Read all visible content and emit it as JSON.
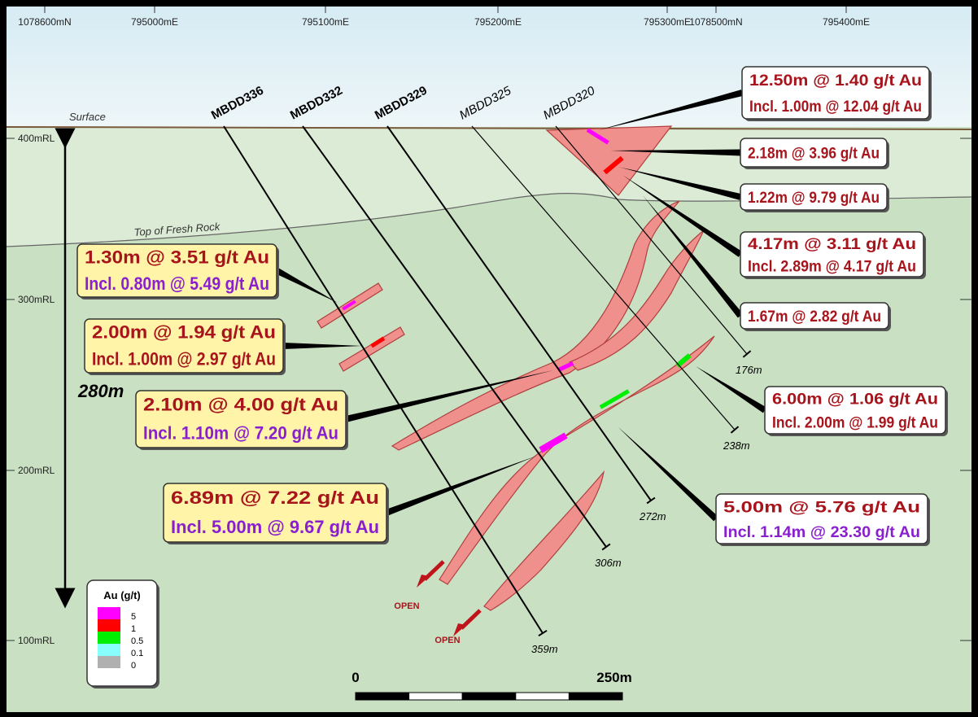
{
  "axis_top": [
    "1078600mN",
    "795000mE",
    "795100mE",
    "795200mE",
    "795300mE",
    "1078500mN",
    "795400mE"
  ],
  "rl_labels": [
    "400mRL",
    "300mRL",
    "200mRL",
    "100mRL"
  ],
  "surface": "Surface",
  "fresh_rock": "Top of Fresh Rock",
  "drillholes": [
    {
      "name": "MBDD336",
      "depth": "359m"
    },
    {
      "name": "MBDD332",
      "depth": "306m"
    },
    {
      "name": "MBDD329",
      "depth": "272m"
    },
    {
      "name": "MBDD325",
      "depth": "238m"
    },
    {
      "name": "MBDD320",
      "depth": "176m"
    }
  ],
  "vertical_extent": "280m",
  "callouts": [
    {
      "style": "white",
      "lines": [
        {
          "text": "12.50m @ 1.40 g/t Au",
          "color": "#a8141c"
        },
        {
          "text": "Incl. 1.00m @ 12.04 g/t Au",
          "color": "#a8141c"
        }
      ]
    },
    {
      "style": "white",
      "lines": [
        {
          "text": "2.18m @ 3.96 g/t Au",
          "color": "#a8141c"
        }
      ]
    },
    {
      "style": "white",
      "lines": [
        {
          "text": "1.22m @ 9.79 g/t Au",
          "color": "#a8141c"
        }
      ]
    },
    {
      "style": "white",
      "lines": [
        {
          "text": "4.17m @ 3.11 g/t Au",
          "color": "#a8141c"
        },
        {
          "text": "Incl. 2.89m @ 4.17 g/t Au",
          "color": "#a8141c"
        }
      ]
    },
    {
      "style": "white",
      "lines": [
        {
          "text": "1.67m @ 2.82 g/t Au",
          "color": "#a8141c"
        }
      ]
    },
    {
      "style": "white",
      "lines": [
        {
          "text": "6.00m @ 1.06 g/t Au",
          "color": "#a8141c"
        },
        {
          "text": "Incl. 2.00m @ 1.99 g/t Au",
          "color": "#a8141c"
        }
      ]
    },
    {
      "style": "white",
      "lines": [
        {
          "text": "5.00m @ 5.76 g/t Au",
          "color": "#a8141c"
        },
        {
          "text": "Incl. 1.14m @ 23.30 g/t Au",
          "color": "#8a1fd0"
        }
      ]
    },
    {
      "style": "yellow",
      "lines": [
        {
          "text": "1.30m @ 3.51 g/t Au",
          "color": "#a8141c"
        },
        {
          "text": "Incl. 0.80m @ 5.49 g/t Au",
          "color": "#8a1fd0"
        }
      ]
    },
    {
      "style": "yellow",
      "lines": [
        {
          "text": "2.00m @ 1.94 g/t Au",
          "color": "#a8141c"
        },
        {
          "text": "Incl. 1.00m @ 2.97 g/t Au",
          "color": "#a8141c"
        }
      ]
    },
    {
      "style": "yellow",
      "lines": [
        {
          "text": "2.10m @ 4.00 g/t Au",
          "color": "#a8141c"
        },
        {
          "text": "Incl. 1.10m @ 7.20 g/t Au",
          "color": "#8a1fd0"
        }
      ]
    },
    {
      "style": "yellow",
      "lines": [
        {
          "text": "6.89m @ 7.22 g/t Au",
          "color": "#a8141c"
        },
        {
          "text": "Incl. 5.00m @ 9.67 g/t Au",
          "color": "#8a1fd0"
        }
      ]
    }
  ],
  "open_labels": [
    "OPEN",
    "OPEN"
  ],
  "legend": {
    "title": "Au (g/t)",
    "items": [
      {
        "label": "5",
        "color": "#ff00ff"
      },
      {
        "label": "1",
        "color": "#ff0000"
      },
      {
        "label": "0.5",
        "color": "#00ee00"
      },
      {
        "label": "0.1",
        "color": "#88ffff"
      },
      {
        "label": "0",
        "color": "#b0b0b0"
      }
    ]
  },
  "scale_bar": {
    "start": "0",
    "end": "250m"
  }
}
